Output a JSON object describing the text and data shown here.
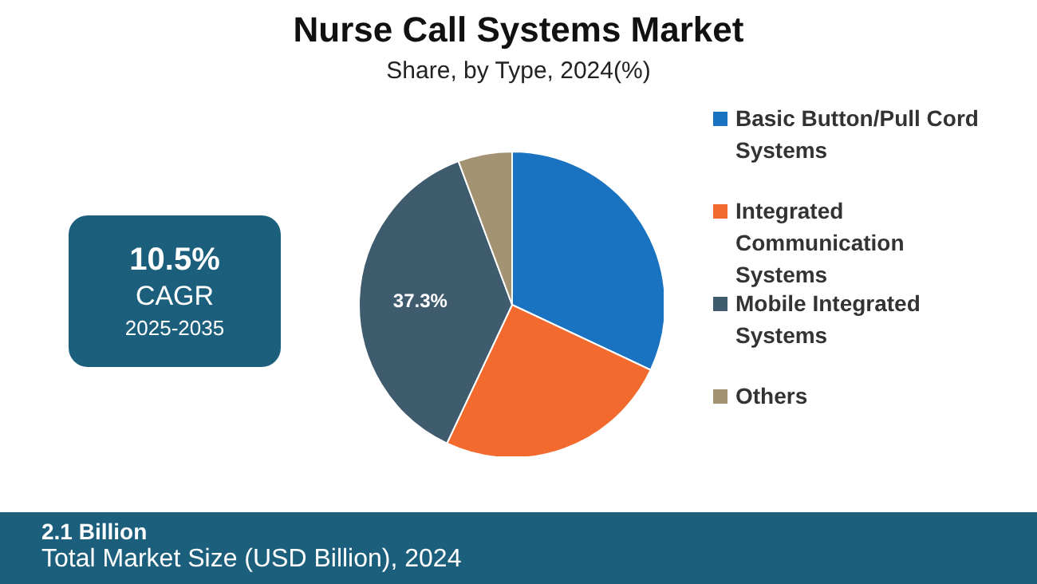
{
  "chart_data": {
    "type": "pie",
    "title": "Nurse Call Systems Market",
    "subtitle": "Share, by Type, 2024(%)",
    "categories": [
      "Basic Button/Pull Cord Systems",
      "Integrated Communication Systems",
      "Mobile Integrated Systems",
      "Others"
    ],
    "values": [
      32,
      25,
      37.3,
      5.7
    ],
    "colors": [
      "#1a73c0",
      "#f26a2e",
      "#3e5c6e",
      "#a39373"
    ],
    "value_labels": [
      null,
      null,
      "37.3%",
      null
    ],
    "legend": "right",
    "annotations": [
      "10.5%",
      "CAGR",
      "2025-2035",
      "2.1 Billion",
      "Total Market Size (USD Billion), 2024"
    ]
  }
}
